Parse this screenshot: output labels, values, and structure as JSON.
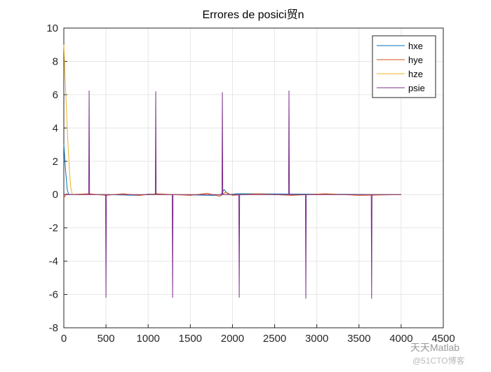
{
  "chart_data": {
    "type": "line",
    "title": "Errores de posici贸n",
    "xlim": [
      0,
      4500
    ],
    "xticks": [
      0,
      500,
      1000,
      1500,
      2000,
      2500,
      3000,
      3500,
      4000,
      4500
    ],
    "ylim": [
      -8,
      10
    ],
    "yticks": [
      -8,
      -6,
      -4,
      -2,
      0,
      2,
      4,
      6,
      8,
      10
    ],
    "grid": true,
    "legend": "upper-right",
    "watermark": [
      "天天Matlab",
      "@51CTO博客"
    ],
    "series": [
      {
        "name": "hxe",
        "color": "#0072BD",
        "x": [
          0,
          20,
          40,
          60,
          300,
          500,
          900,
          1000,
          1800,
          1850,
          1900,
          1950,
          2050,
          4000
        ],
        "values": [
          3,
          1.5,
          0.3,
          0,
          0.02,
          0,
          -0.05,
          0.03,
          -0.05,
          -0.1,
          0.3,
          0,
          0.05,
          0
        ]
      },
      {
        "name": "hye",
        "color": "#D95319",
        "x": [
          0,
          30,
          60,
          300,
          500,
          700,
          900,
          1100,
          1500,
          1700,
          1850,
          1920,
          2000,
          2300,
          2700,
          3100,
          3500,
          4000
        ],
        "values": [
          -0.2,
          0.05,
          0,
          0.05,
          -0.05,
          0.05,
          -0.05,
          0.05,
          -0.05,
          0.08,
          -0.1,
          0.15,
          -0.05,
          0.05,
          -0.05,
          0.05,
          -0.05,
          0
        ]
      },
      {
        "name": "hze",
        "color": "#EDB120",
        "x": [
          0,
          20,
          40,
          60,
          80,
          100,
          4000
        ],
        "values": [
          9,
          6.5,
          4,
          2,
          0.5,
          0,
          0
        ]
      },
      {
        "name": "psie",
        "color": "#7E2F8E",
        "x": [
          0,
          295,
          300,
          305,
          495,
          500,
          505,
          1085,
          1090,
          1095,
          1285,
          1290,
          1295,
          1875,
          1880,
          1885,
          2075,
          2080,
          2085,
          2665,
          2670,
          2675,
          2865,
          2870,
          2875,
          3645,
          3650,
          3655,
          4000
        ],
        "values": [
          0,
          0,
          6.25,
          0,
          0,
          -6.2,
          0,
          0,
          6.2,
          0,
          0,
          -6.2,
          0,
          0,
          6.15,
          0,
          0,
          -6.2,
          0,
          0,
          6.25,
          0,
          0,
          -6.25,
          0,
          0,
          -6.25,
          0,
          0
        ]
      }
    ]
  }
}
